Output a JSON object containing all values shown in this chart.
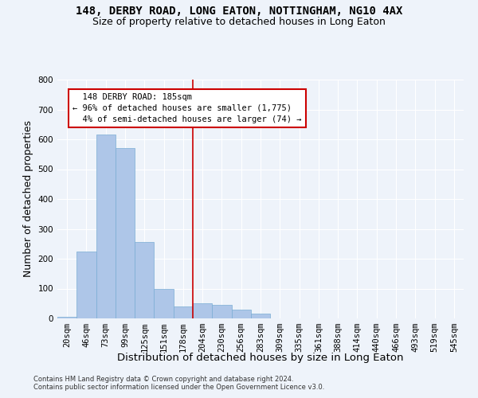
{
  "title": "148, DERBY ROAD, LONG EATON, NOTTINGHAM, NG10 4AX",
  "subtitle": "Size of property relative to detached houses in Long Eaton",
  "xlabel": "Distribution of detached houses by size in Long Eaton",
  "ylabel": "Number of detached properties",
  "footnote1": "Contains HM Land Registry data © Crown copyright and database right 2024.",
  "footnote2": "Contains public sector information licensed under the Open Government Licence v3.0.",
  "bin_labels": [
    "20sqm",
    "46sqm",
    "73sqm",
    "99sqm",
    "125sqm",
    "151sqm",
    "178sqm",
    "204sqm",
    "230sqm",
    "256sqm",
    "283sqm",
    "309sqm",
    "335sqm",
    "361sqm",
    "388sqm",
    "414sqm",
    "440sqm",
    "466sqm",
    "493sqm",
    "519sqm",
    "545sqm"
  ],
  "bar_values": [
    5,
    225,
    615,
    570,
    255,
    100,
    40,
    50,
    45,
    30,
    15,
    0,
    0,
    0,
    0,
    0,
    0,
    0,
    0,
    0,
    0
  ],
  "ylim": [
    0,
    800
  ],
  "yticks": [
    0,
    100,
    200,
    300,
    400,
    500,
    600,
    700,
    800
  ],
  "property_label": "148 DERBY ROAD: 185sqm",
  "pct_smaller": 96,
  "n_smaller": 1775,
  "pct_larger": 4,
  "n_larger": 74,
  "vline_bin": 6,
  "bar_color": "#AEC6E8",
  "bar_edge_color": "#7AADD4",
  "vline_color": "#CC0000",
  "annotation_box_color": "#CC0000",
  "bg_color": "#EEF3FA",
  "grid_color": "#FFFFFF",
  "title_fontsize": 10,
  "subtitle_fontsize": 9,
  "axis_label_fontsize": 9,
  "tick_fontsize": 7.5,
  "annotation_fontsize": 7.5,
  "footnote_fontsize": 6
}
